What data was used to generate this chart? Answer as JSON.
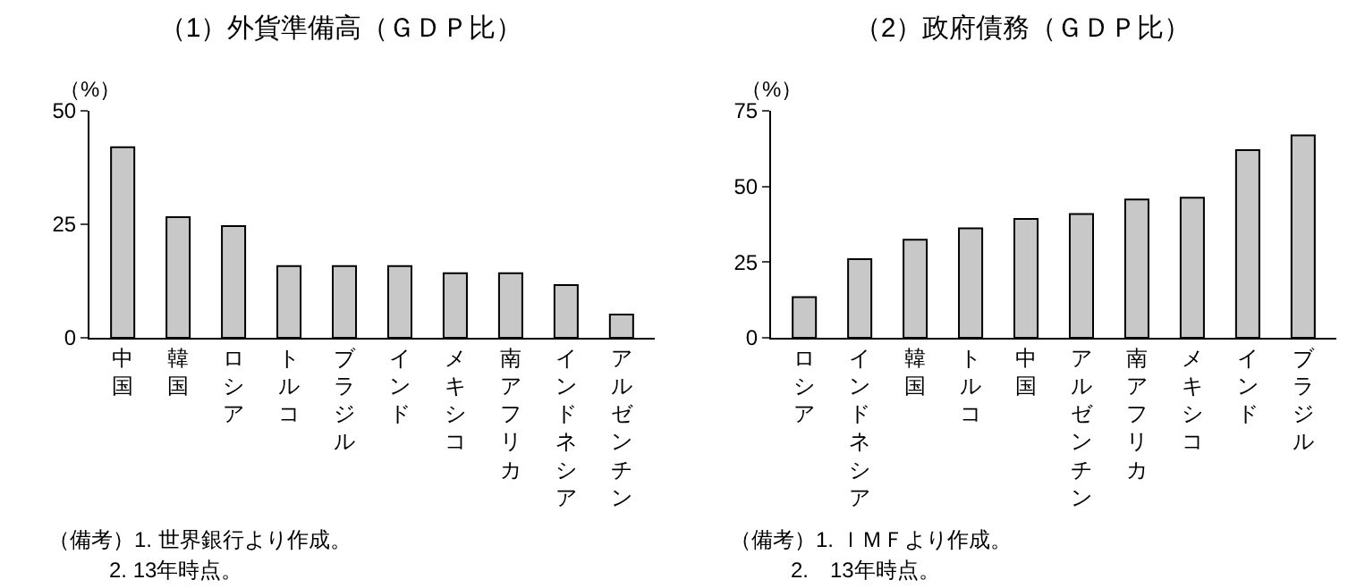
{
  "chart_data": [
    {
      "type": "bar",
      "title": "（1）外貨準備高（ＧＤＰ比）",
      "ylabel": "（%）",
      "categories": [
        "中国",
        "韓国",
        "ロシア",
        "トルコ",
        "ブラジル",
        "インド",
        "メキシコ",
        "南アフリカ",
        "インドネシア",
        "アルゼンチン"
      ],
      "values": [
        42,
        26.6,
        24.6,
        15.8,
        15.8,
        15.8,
        14.2,
        14.2,
        11.6,
        5.1
      ],
      "color": "#c8c8c8",
      "ylim": [
        0,
        50
      ],
      "yticks": [
        0,
        25,
        50
      ],
      "grid": false,
      "annotations": [
        "（備考）1. 世界銀行より作成。",
        "2. 13年時点。"
      ]
    },
    {
      "type": "bar",
      "title": "（2）政府債務（ＧＤＰ比）",
      "ylabel": "（%）",
      "categories": [
        "ロシア",
        "インドネシア",
        "韓国",
        "トルコ",
        "中国",
        "アルゼンチン",
        "南アフリカ",
        "メキシコ",
        "インド",
        "ブラジル"
      ],
      "values": [
        13.4,
        26,
        32.4,
        36.2,
        39.3,
        40.9,
        45.7,
        46.3,
        62,
        66.9
      ],
      "color": "#c8c8c8",
      "ylim": [
        0,
        75
      ],
      "yticks": [
        0,
        25,
        50,
        75
      ],
      "grid": false,
      "annotations": [
        "（備考）1. ＩＭＦより作成。",
        "2.　13年時点。"
      ]
    }
  ]
}
